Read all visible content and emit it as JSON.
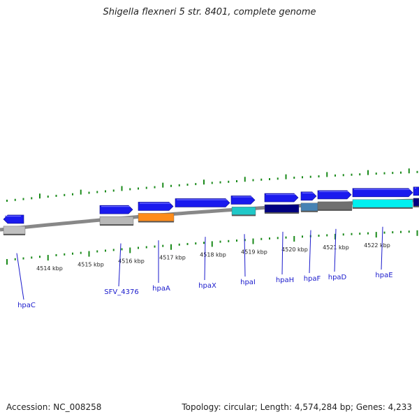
{
  "title": "Shigella flexneri 5 str. 8401, complete genome",
  "footer": {
    "accession": "Accession: NC_008258",
    "topology": "Topology: circular; Length: 4,574,284 bp; Genes: 4,233"
  },
  "colors": {
    "tick": "#1a8a1a",
    "backbone": "#888888",
    "gene_forward": "#1a1aee",
    "label": "#1a1acc",
    "text": "#222222"
  },
  "scale": {
    "unit": "kbp",
    "labels": [
      "4514 kbp",
      "4515 kbp",
      "4516 kbp",
      "4517 kbp",
      "4518 kbp",
      "4519 kbp",
      "4520 kbp",
      "4521 kbp",
      "4522 kbp"
    ]
  },
  "gene_labels": [
    "hpaC",
    "SFV_4376",
    "hpaA",
    "hpaX",
    "hpaI",
    "hpaH",
    "hpaF",
    "hpaD",
    "hpaE"
  ],
  "feature_colors": [
    "#c0c0c0",
    "#b8b8b8",
    "#ff8c1a",
    "#20c8c8",
    "#000080",
    "#4682b4",
    "#707070",
    "#00f0f0",
    "#000080"
  ]
}
